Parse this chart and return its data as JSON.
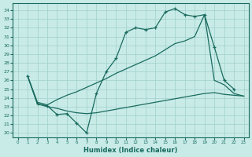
{
  "xlabel": "Humidex (Indice chaleur)",
  "bg_color": "#c8ebe8",
  "line_color": "#1a6b5e",
  "grid_color": "#a0cfca",
  "ylim": [
    19.5,
    34.8
  ],
  "xlim": [
    -0.5,
    23.5
  ],
  "yticks": [
    20,
    21,
    22,
    23,
    24,
    25,
    26,
    27,
    28,
    29,
    30,
    31,
    32,
    33,
    34
  ],
  "xticks": [
    0,
    1,
    2,
    3,
    4,
    5,
    6,
    7,
    8,
    9,
    10,
    11,
    12,
    13,
    14,
    15,
    16,
    17,
    18,
    19,
    20,
    21,
    22,
    23
  ],
  "line1_x": [
    1,
    2,
    3,
    4,
    5,
    6,
    7,
    8,
    9,
    10,
    11,
    12,
    13,
    14,
    15,
    16,
    17,
    18,
    19,
    20,
    21,
    22
  ],
  "line1_y": [
    26.5,
    23.3,
    23.1,
    22.1,
    22.2,
    21.1,
    20.0,
    24.5,
    27.0,
    28.5,
    31.5,
    32.0,
    31.8,
    32.0,
    33.8,
    34.2,
    33.5,
    33.3,
    33.5,
    29.8,
    26.0,
    25.0
  ],
  "line2_x": [
    1,
    2,
    3,
    4,
    5,
    6,
    7,
    8,
    9,
    10,
    11,
    12,
    13,
    14,
    15,
    16,
    17,
    18,
    19,
    20,
    21,
    22,
    23
  ],
  "line2_y": [
    26.5,
    23.5,
    23.2,
    23.8,
    24.3,
    24.7,
    25.2,
    25.7,
    26.2,
    26.8,
    27.3,
    27.8,
    28.3,
    28.8,
    29.5,
    30.2,
    30.5,
    31.0,
    33.5,
    26.0,
    25.5,
    24.5,
    24.2
  ],
  "line3_x": [
    1,
    2,
    3,
    4,
    5,
    6,
    7,
    8,
    9,
    10,
    11,
    12,
    13,
    14,
    15,
    16,
    17,
    18,
    19,
    20,
    21,
    22,
    23
  ],
  "line3_y": [
    26.5,
    23.3,
    23.0,
    22.8,
    22.5,
    22.3,
    22.2,
    22.3,
    22.5,
    22.7,
    22.9,
    23.1,
    23.3,
    23.5,
    23.7,
    23.9,
    24.1,
    24.3,
    24.5,
    24.6,
    24.4,
    24.3,
    24.2
  ]
}
